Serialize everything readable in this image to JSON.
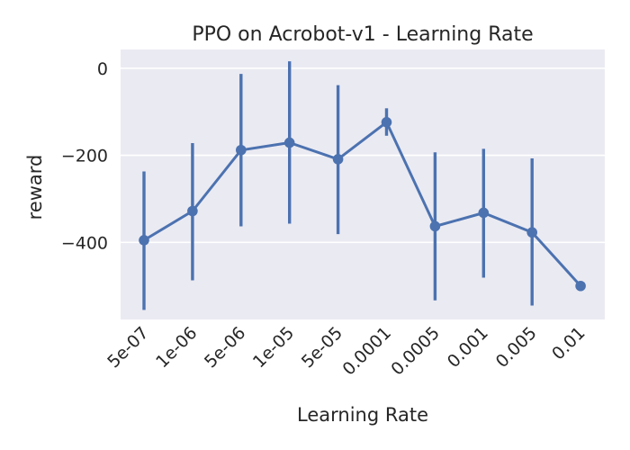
{
  "chart_data": {
    "type": "line",
    "title": "PPO on Acrobot-v1 - Learning Rate",
    "xlabel": "Learning Rate",
    "ylabel": "reward",
    "categories": [
      "5e-07",
      "1e-06",
      "5e-06",
      "1e-05",
      "5e-05",
      "0.0001",
      "0.0005",
      "0.001",
      "0.005",
      "0.01"
    ],
    "values": [
      -395,
      -328,
      -188,
      -171,
      -209,
      -124,
      -363,
      -332,
      -377,
      -500
    ],
    "error_low": [
      -555,
      -487,
      -363,
      -357,
      -381,
      -155,
      -533,
      -481,
      -545,
      -500
    ],
    "error_high": [
      -237,
      -172,
      -13,
      16,
      -39,
      -92,
      -193,
      -185,
      -207,
      -500
    ],
    "yticks": [
      0,
      -200,
      -400
    ],
    "ylim": [
      -577,
      43
    ],
    "grid": true,
    "colors": {
      "line": "#4c72b0",
      "plot_bg": "#eaeaf2",
      "grid": "#ffffff"
    }
  }
}
